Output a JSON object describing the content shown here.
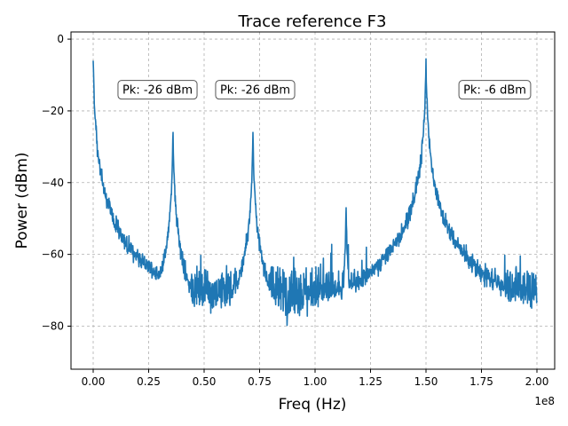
{
  "chart_data": {
    "type": "line",
    "title": "Trace reference F3",
    "xlabel": "Freq (Hz)",
    "ylabel": "Power (dBm)",
    "x_offset_label": "1e8",
    "xlim": [
      -0.1,
      2.08
    ],
    "ylim": [
      -92,
      2
    ],
    "x_ticks": [
      0.0,
      0.25,
      0.5,
      0.75,
      1.0,
      1.25,
      1.5,
      1.75,
      2.0
    ],
    "x_tick_labels": [
      "0.00",
      "0.25",
      "0.50",
      "0.75",
      "1.00",
      "1.25",
      "1.50",
      "1.75",
      "2.00"
    ],
    "y_ticks": [
      0,
      -20,
      -40,
      -60,
      -80
    ],
    "y_tick_labels": [
      "0",
      "−20",
      "−40",
      "−60",
      "−80"
    ],
    "grid": true,
    "line_color": "#1f77b4",
    "series": [
      {
        "x_range": [
          0.0,
          2.0
        ],
        "x_unit_multiplier": 100000000.0,
        "noise_floor_dbm": -70,
        "peaks": [
          {
            "x": 0.0,
            "value": -6
          },
          {
            "x": 0.36,
            "value": -26
          },
          {
            "x": 0.72,
            "value": -26
          },
          {
            "x": 1.14,
            "value": -47
          },
          {
            "x": 1.5,
            "value": -5.5
          }
        ]
      }
    ],
    "annotations": [
      {
        "text": "Pk: -26 dBm",
        "x": 0.29,
        "y": -14
      },
      {
        "text": "Pk: -26 dBm",
        "x": 0.73,
        "y": -14
      },
      {
        "text": "Pk: -6 dBm",
        "x": 1.81,
        "y": -14
      }
    ]
  }
}
